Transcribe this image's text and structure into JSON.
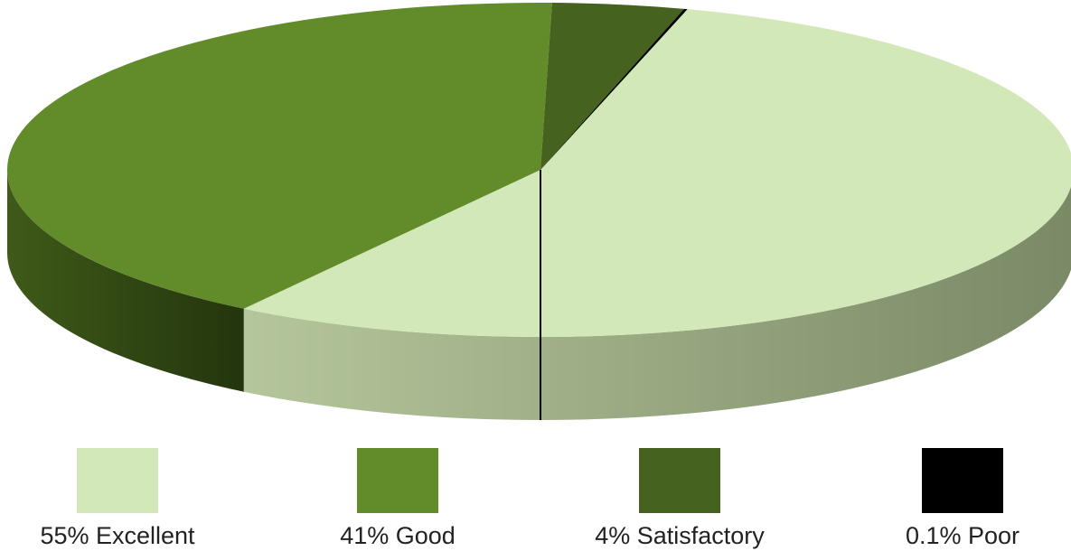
{
  "chart_data": {
    "type": "pie",
    "style": "3d",
    "title": "",
    "legend_position": "bottom",
    "series": [
      {
        "values": [
          55,
          41,
          4,
          0.1
        ],
        "categories": [
          "Excellent",
          "Good",
          "Satisfactory",
          "Poor"
        ],
        "labels": [
          "55% Excellent",
          "41% Good",
          "4% Satisfactory",
          "0.1% Poor"
        ],
        "colors": [
          "#d3e8b8",
          "#628b2a",
          "#45621f",
          "#000000"
        ],
        "side_colors": [
          "#8f9d79",
          "#334a16",
          "#233510",
          "#000000"
        ]
      }
    ]
  }
}
